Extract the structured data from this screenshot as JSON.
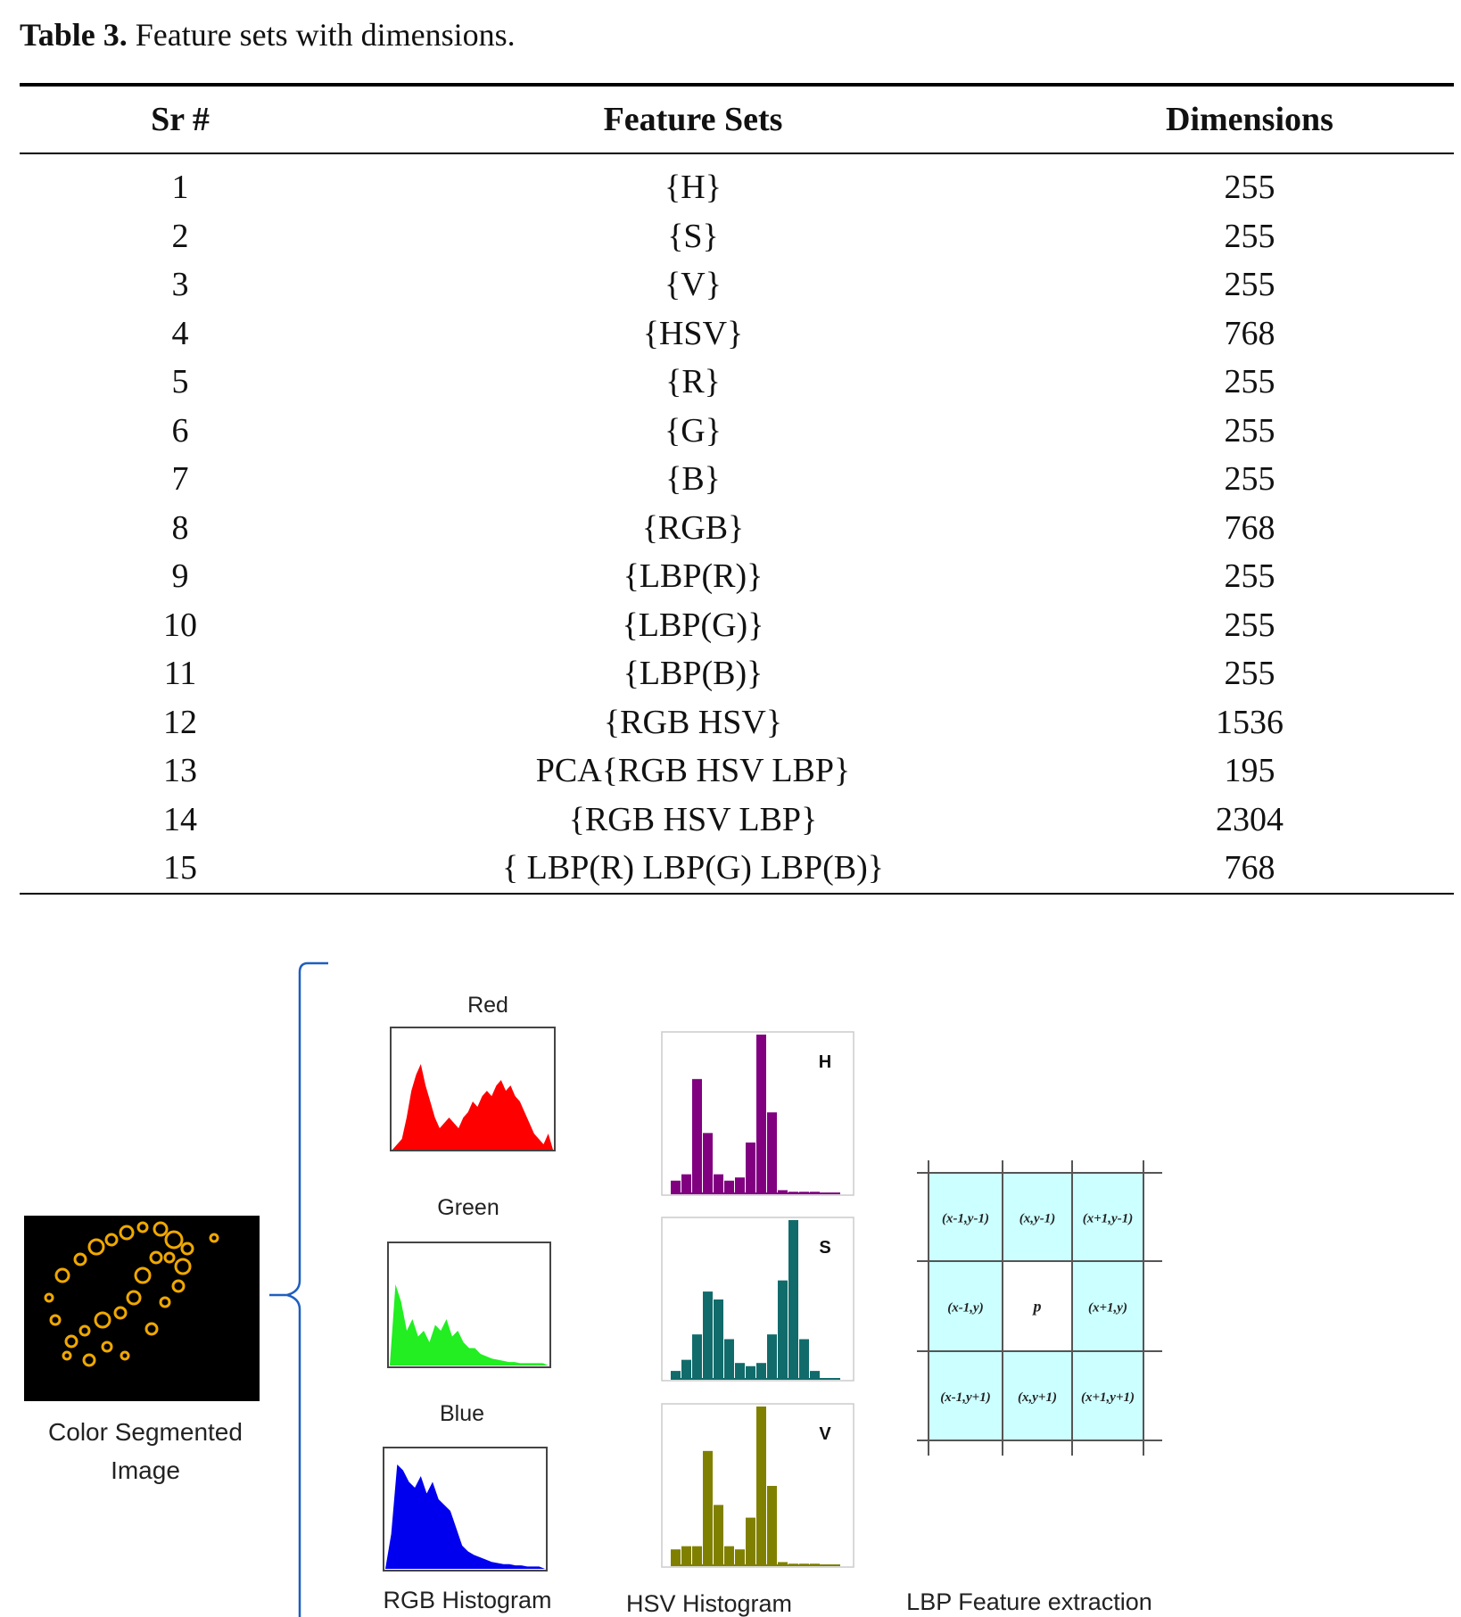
{
  "caption": {
    "label": "Table 3.",
    "text": " Feature sets with dimensions."
  },
  "table": {
    "headers": [
      "Sr #",
      "Feature Sets",
      "Dimensions"
    ],
    "rows": [
      [
        "1",
        "{H}",
        "255"
      ],
      [
        "2",
        "{S}",
        "255"
      ],
      [
        "3",
        "{V}",
        "255"
      ],
      [
        "4",
        "{HSV}",
        "768"
      ],
      [
        "5",
        "{R}",
        "255"
      ],
      [
        "6",
        "{G}",
        "255"
      ],
      [
        "7",
        "{B}",
        "255"
      ],
      [
        "8",
        "{RGB}",
        "768"
      ],
      [
        "9",
        "{LBP(R)}",
        "255"
      ],
      [
        "10",
        "{LBP(G)}",
        "255"
      ],
      [
        "11",
        "{LBP(B)}",
        "255"
      ],
      [
        "12",
        "{RGB HSV}",
        "1536"
      ],
      [
        "13",
        "PCA{RGB HSV LBP}",
        "195"
      ],
      [
        "14",
        "{RGB HSV LBP}",
        "2304"
      ],
      [
        "15",
        "{ LBP(R) LBP(G) LBP(B)}",
        "768"
      ]
    ]
  },
  "figure": {
    "segmented_label_line1": "Color Segmented",
    "segmented_label_line2": "Image",
    "rgb": {
      "titles": [
        "Red",
        "Green",
        "Blue"
      ],
      "caption": "RGB Histogram",
      "colors": {
        "red": "#ff0000",
        "green": "#22ee22",
        "blue": "#0000ee"
      }
    },
    "hsv": {
      "letters": [
        "H",
        "S",
        "V"
      ],
      "caption": "HSV Histogram",
      "colors": {
        "h": "#800080",
        "s": "#116b6b",
        "v": "#808000"
      }
    },
    "lbp": {
      "cells": [
        [
          "(x-1,y-1)",
          "(x,y-1)",
          "(x+1,y-1)"
        ],
        [
          "(x-1,y)",
          "p",
          "(x+1,y)"
        ],
        [
          "(x-1,y+1)",
          "(x,y+1)",
          "(x+1,y+1)"
        ]
      ],
      "caption": "LBP Feature extraction",
      "cell_color": "#ccffff"
    },
    "brace_color": "#1f5fbf"
  }
}
